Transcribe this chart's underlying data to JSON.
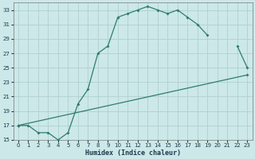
{
  "xlabel": "Humidex (Indice chaleur)",
  "ylabel": "",
  "background_color": "#cce8e8",
  "line_color": "#2e7d6e",
  "grid_color": "#b0d0d0",
  "xlim": [
    -0.5,
    23.5
  ],
  "ylim": [
    15,
    34
  ],
  "xticks": [
    0,
    1,
    2,
    3,
    4,
    5,
    6,
    7,
    8,
    9,
    10,
    11,
    12,
    13,
    14,
    15,
    16,
    17,
    18,
    19,
    20,
    21,
    22,
    23
  ],
  "yticks": [
    15,
    17,
    19,
    21,
    23,
    25,
    27,
    29,
    31,
    33
  ],
  "series": [
    {
      "x": [
        0,
        1,
        2,
        3,
        4,
        5,
        6,
        7,
        8,
        9,
        10,
        11,
        12,
        13,
        14,
        15,
        16,
        17,
        18,
        19,
        20,
        21,
        22,
        23
      ],
      "y": [
        17,
        17,
        16,
        16,
        15,
        16,
        20,
        22,
        27,
        28,
        32,
        32.5,
        33,
        33.5,
        33,
        32.5,
        33,
        32,
        31,
        29.5,
        null,
        null,
        null,
        null
      ]
    },
    {
      "x": [
        0,
        20,
        21,
        22,
        23
      ],
      "y": [
        17,
        null,
        null,
        28,
        25
      ]
    },
    {
      "x": [
        0,
        23
      ],
      "y": [
        17,
        24
      ]
    }
  ]
}
